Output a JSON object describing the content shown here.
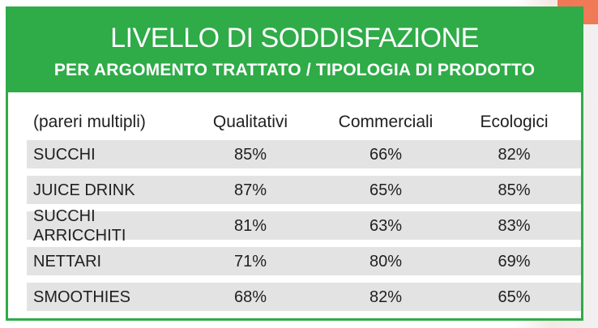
{
  "header": {
    "title": "LIVELLO DI SODDISFAZIONE",
    "subtitle": "PER ARGOMENTO TRATTATO / TIPOLOGIA DI PRODOTTO"
  },
  "colors": {
    "brand_green": "#2fab48",
    "row_shade": "#e3e3e3",
    "accent_orange": "#f0643c"
  },
  "chart_data": {
    "type": "table",
    "title": "LIVELLO DI SODDISFAZIONE",
    "subtitle": "PER ARGOMENTO TRATTATO / TIPOLOGIA DI PRODOTTO",
    "row_header_label": "(pareri multipli)",
    "columns": [
      "Qualitativi",
      "Commerciali",
      "Ecologici"
    ],
    "rows": [
      {
        "label": "SUCCHI",
        "values": [
          "85%",
          "66%",
          "82%"
        ]
      },
      {
        "label": "JUICE DRINK",
        "values": [
          "87%",
          "65%",
          "85%"
        ]
      },
      {
        "label": "SUCCHI ARRICCHITI",
        "values": [
          "81%",
          "63%",
          "83%"
        ]
      },
      {
        "label": "NETTARI",
        "values": [
          "71%",
          "80%",
          "69%"
        ]
      },
      {
        "label": "SMOOTHIES",
        "values": [
          "68%",
          "82%",
          "65%"
        ]
      }
    ]
  }
}
